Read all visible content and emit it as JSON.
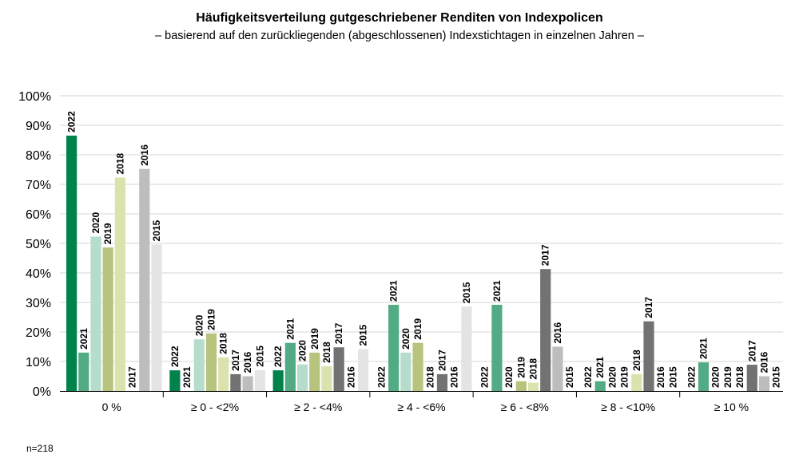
{
  "title": "Häufigkeitsverteilung gutgeschriebener Renditen von Indexpolicen",
  "subtitle": "– basierend auf den zurückliegenden (abgeschlossenen) Indexstichtagen in einzelnen Jahren –",
  "note": "n=218",
  "colors": {
    "2022": "#00834a",
    "2021": "#52ab85",
    "2020": "#b6dccb",
    "2019": "#b7c47e",
    "2018": "#dbe2ae",
    "2017": "#727272",
    "2016": "#bdbdbd",
    "2015": "#e4e4e4"
  },
  "chart_data": {
    "type": "bar",
    "title": "Häufigkeitsverteilung gutgeschriebener Renditen von Indexpolicen",
    "subtitle": "– basierend auf den zurückliegenden (abgeschlossenen) Indexstichtagen in einzelnen Jahren –",
    "xlabel": "",
    "ylabel": "",
    "ylim": [
      0,
      100
    ],
    "yticks": [
      "0%",
      "10%",
      "20%",
      "30%",
      "40%",
      "50%",
      "60%",
      "70%",
      "80%",
      "90%",
      "100%"
    ],
    "grid": true,
    "categories": [
      "0 %",
      "≥ 0 - <2%",
      "≥ 2 - <4%",
      "≥ 4 - <6%",
      "≥ 6 - <8%",
      "≥ 8 - <10%",
      "≥ 10 %"
    ],
    "series": [
      {
        "name": "2022",
        "values": [
          86.5,
          7,
          7,
          0,
          0,
          0,
          0
        ]
      },
      {
        "name": "2021",
        "values": [
          13,
          0,
          16.3,
          29.2,
          29.2,
          3.3,
          9.7
        ]
      },
      {
        "name": "2020",
        "values": [
          52.3,
          17.5,
          9,
          13,
          0,
          0,
          0
        ]
      },
      {
        "name": "2019",
        "values": [
          48.6,
          19.5,
          13,
          16.3,
          3.3,
          0,
          0
        ]
      },
      {
        "name": "2018",
        "values": [
          72.3,
          11.4,
          8.4,
          0,
          2.8,
          5.7,
          0
        ]
      },
      {
        "name": "2017",
        "values": [
          0,
          5.7,
          14.8,
          5.7,
          41.3,
          23.6,
          8.9
        ]
      },
      {
        "name": "2016",
        "values": [
          75.2,
          5,
          0,
          0,
          15,
          0,
          5
        ]
      },
      {
        "name": "2015",
        "values": [
          49.6,
          7.1,
          14.2,
          28.6,
          0,
          0,
          0
        ]
      }
    ]
  }
}
